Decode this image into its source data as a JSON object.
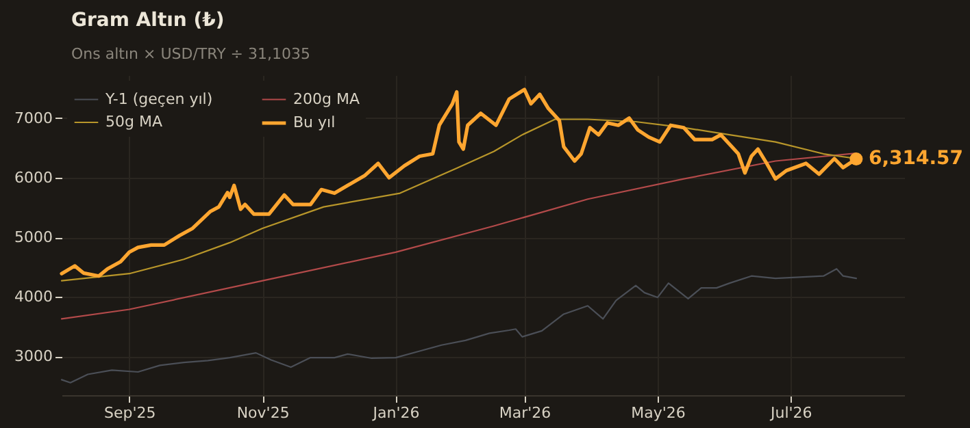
{
  "chart_data": {
    "type": "line",
    "title": "Gram Altın (₺)",
    "subtitle": "Ons altın × USD/TRY ÷ 31,1035",
    "xlim": [
      "2025-08-01",
      "2026-08-22"
    ],
    "xticks": [
      {
        "value": "2025-09-01",
        "label": "Sep'25"
      },
      {
        "value": "2025-11-01",
        "label": "Nov'25"
      },
      {
        "value": "2026-01-01",
        "label": "Jan'26"
      },
      {
        "value": "2026-03-01",
        "label": "Mar'26"
      },
      {
        "value": "2026-05-01",
        "label": "May'26"
      },
      {
        "value": "2026-07-01",
        "label": "Jul'26"
      }
    ],
    "ylim": [
      2350,
      7720
    ],
    "yticks": [
      3000,
      4000,
      5000,
      6000,
      7000
    ],
    "grid": true,
    "legend": "top left",
    "marker": "none",
    "line_style": "solid",
    "series": [
      {
        "name": "Y-1 (geçen yıl)",
        "color": "#4b4f57",
        "x": [
          "2025-08-01",
          "2025-08-05",
          "2025-08-13",
          "2025-08-24",
          "2025-09-05",
          "2025-09-15",
          "2025-09-26",
          "2025-10-07",
          "2025-10-17",
          "2025-10-29",
          "2025-11-05",
          "2025-11-14",
          "2025-11-23",
          "2025-12-04",
          "2025-12-10",
          "2025-12-21",
          "2026-01-01",
          "2026-01-12",
          "2026-01-22",
          "2026-02-02",
          "2026-02-13",
          "2026-02-22",
          "2026-02-25",
          "2026-02-28",
          "2026-03-09",
          "2026-03-19",
          "2026-03-30",
          "2026-04-06",
          "2026-04-12",
          "2026-04-21",
          "2026-04-25",
          "2026-05-01",
          "2026-05-06",
          "2026-05-15",
          "2026-05-21",
          "2026-05-28",
          "2026-06-03",
          "2026-06-13",
          "2026-06-24",
          "2026-07-05",
          "2026-07-16",
          "2026-07-22",
          "2026-07-25",
          "2026-07-31"
        ],
        "values": [
          2610,
          2560,
          2700,
          2770,
          2740,
          2850,
          2900,
          2930,
          2980,
          3060,
          2940,
          2820,
          2980,
          2980,
          3040,
          2970,
          2980,
          3090,
          3190,
          3270,
          3390,
          3440,
          3460,
          3330,
          3430,
          3710,
          3850,
          3630,
          3940,
          4190,
          4070,
          3990,
          4230,
          3970,
          4150,
          4150,
          4230,
          4350,
          4310,
          4330,
          4350,
          4470,
          4350,
          4310
        ]
      },
      {
        "name": "200g MA",
        "color": "#b34a4a",
        "x": [
          "2025-08-01",
          "2025-09-01",
          "2025-11-01",
          "2026-01-01",
          "2026-02-15",
          "2026-03-30",
          "2026-05-13",
          "2026-06-24",
          "2026-07-31"
        ],
        "values": [
          3630,
          3790,
          4270,
          4750,
          5190,
          5640,
          5980,
          6280,
          6410
        ]
      },
      {
        "name": "50g MA",
        "color": "#b8962a",
        "x": [
          "2025-08-01",
          "2025-09-01",
          "2025-09-26",
          "2025-10-17",
          "2025-11-01",
          "2025-11-29",
          "2026-01-03",
          "2026-01-29",
          "2026-02-15",
          "2026-02-28",
          "2026-03-15",
          "2026-03-30",
          "2026-04-21",
          "2026-05-13",
          "2026-06-03",
          "2026-06-24",
          "2026-07-16",
          "2026-07-31"
        ],
        "values": [
          4270,
          4390,
          4630,
          4910,
          5150,
          5510,
          5740,
          6160,
          6440,
          6720,
          6980,
          6980,
          6940,
          6840,
          6720,
          6600,
          6400,
          6320
        ]
      },
      {
        "name": "Bu yıl",
        "color": "#ffa630",
        "x": [
          "2025-08-01",
          "2025-08-07",
          "2025-08-11",
          "2025-08-18",
          "2025-08-22",
          "2025-08-28",
          "2025-09-01",
          "2025-09-05",
          "2025-09-11",
          "2025-09-17",
          "2025-09-24",
          "2025-09-30",
          "2025-10-08",
          "2025-10-12",
          "2025-10-16",
          "2025-10-17",
          "2025-10-19",
          "2025-10-22",
          "2025-10-24",
          "2025-10-28",
          "2025-11-04",
          "2025-11-11",
          "2025-11-15",
          "2025-11-23",
          "2025-11-28",
          "2025-12-04",
          "2025-12-10",
          "2025-12-18",
          "2025-12-24",
          "2025-12-29",
          "2026-01-05",
          "2026-01-12",
          "2026-01-18",
          "2026-01-21",
          "2026-01-27",
          "2026-01-29",
          "2026-01-30",
          "2026-02-01",
          "2026-02-03",
          "2026-02-09",
          "2026-02-16",
          "2026-02-22",
          "2026-03-01",
          "2026-03-04",
          "2026-03-08",
          "2026-03-12",
          "2026-03-17",
          "2026-03-19",
          "2026-03-24",
          "2026-03-27",
          "2026-03-31",
          "2026-04-04",
          "2026-04-08",
          "2026-04-13",
          "2026-04-18",
          "2026-04-22",
          "2026-04-27",
          "2026-05-02",
          "2026-05-07",
          "2026-05-13",
          "2026-05-18",
          "2026-05-26",
          "2026-05-30",
          "2026-06-04",
          "2026-06-07",
          "2026-06-10",
          "2026-06-13",
          "2026-06-16",
          "2026-06-20",
          "2026-06-24",
          "2026-06-29",
          "2026-07-08",
          "2026-07-14",
          "2026-07-21",
          "2026-07-25",
          "2026-07-31"
        ],
        "values": [
          4390,
          4520,
          4400,
          4350,
          4470,
          4590,
          4750,
          4830,
          4870,
          4870,
          5030,
          5150,
          5430,
          5510,
          5750,
          5670,
          5870,
          5470,
          5550,
          5390,
          5390,
          5710,
          5550,
          5550,
          5800,
          5740,
          5870,
          6040,
          6240,
          6000,
          6200,
          6360,
          6400,
          6880,
          7240,
          7440,
          6600,
          6480,
          6880,
          7080,
          6880,
          7320,
          7480,
          7240,
          7400,
          7160,
          6960,
          6520,
          6280,
          6400,
          6840,
          6720,
          6920,
          6880,
          7000,
          6800,
          6680,
          6600,
          6880,
          6840,
          6640,
          6640,
          6720,
          6520,
          6400,
          6080,
          6360,
          6480,
          6240,
          5980,
          6120,
          6240,
          6060,
          6320,
          6170,
          6314.57
        ]
      }
    ],
    "annotations": [
      {
        "text": "6,314.57",
        "x": "2026-07-31",
        "y": 6314.57
      }
    ]
  }
}
